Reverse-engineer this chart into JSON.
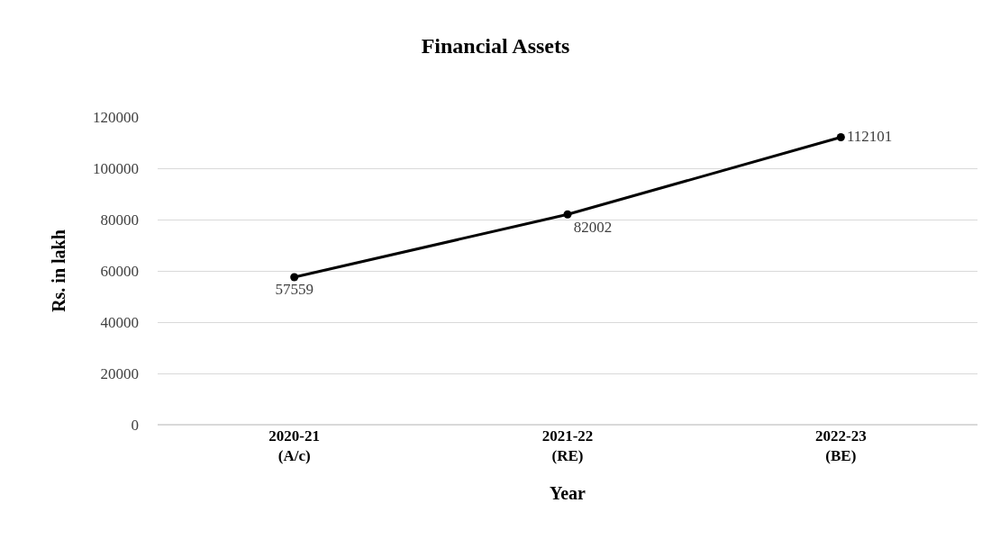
{
  "chart_data": {
    "type": "line",
    "title": "Financial Assets",
    "xlabel": "Year",
    "ylabel": "Rs. in lakh",
    "categories": [
      "2020-21\n(A/c)",
      "2021-22\n(RE)",
      "2022-23\n(BE)"
    ],
    "series": [
      {
        "color": "#000000",
        "values": [
          57559,
          82002,
          112101
        ]
      }
    ],
    "ylim": [
      0,
      120000
    ],
    "yticks": [
      0,
      20000,
      40000,
      60000,
      80000,
      100000,
      120000
    ],
    "grid": "y",
    "legend": false,
    "marker": "circle",
    "line_style": "solid",
    "data_labels": true
  }
}
